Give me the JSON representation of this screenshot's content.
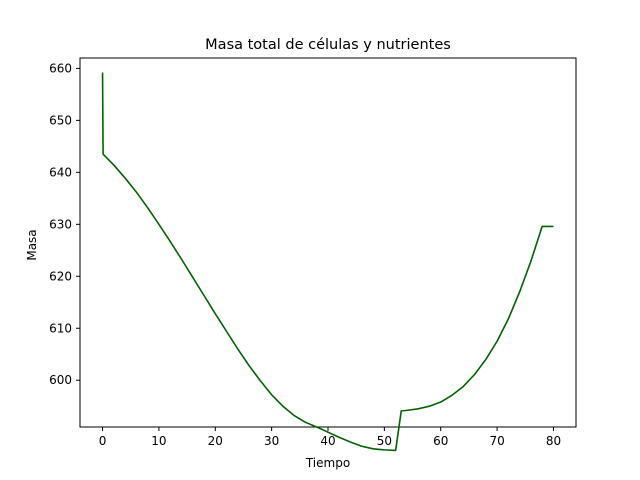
{
  "chart_data": {
    "type": "line",
    "title": "Masa total de células y nutrientes",
    "xlabel": "Tiempo",
    "ylabel": "Masa",
    "xlim": [
      -4,
      84
    ],
    "ylim": [
      591,
      662
    ],
    "xticks": [
      0,
      10,
      20,
      30,
      40,
      50,
      60,
      70,
      80
    ],
    "yticks": [
      600,
      610,
      620,
      630,
      640,
      650,
      660
    ],
    "grid": false,
    "legend": "none",
    "series": [
      {
        "color": "#006400",
        "x": [
          0,
          0.1,
          2,
          4,
          6,
          8,
          10,
          12,
          14,
          16,
          18,
          20,
          22,
          24,
          26,
          28,
          30,
          32,
          34,
          36,
          38,
          40,
          42,
          44,
          46,
          48,
          50,
          52,
          53,
          54,
          56,
          58,
          60,
          62,
          64,
          66,
          68,
          70,
          72,
          74,
          76,
          78,
          80
        ],
        "y": [
          659.2,
          643.5,
          641.4,
          638.9,
          636.2,
          633.2,
          630.0,
          626.7,
          623.3,
          619.8,
          616.3,
          612.8,
          609.4,
          606.0,
          602.8,
          599.9,
          597.2,
          595.0,
          593.2,
          591.9,
          591.0,
          590.0,
          589.0,
          588.1,
          587.3,
          586.8,
          586.6,
          586.5,
          594.1,
          594.2,
          594.5,
          595.0,
          595.8,
          597.1,
          598.8,
          601.1,
          604.0,
          607.5,
          611.8,
          617.0,
          622.9,
          629.6,
          629.6
        ]
      }
    ]
  }
}
